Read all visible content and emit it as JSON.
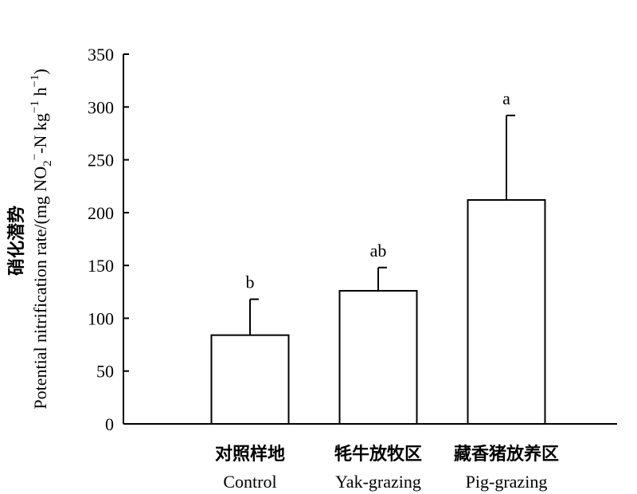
{
  "chart_data": {
    "type": "bar",
    "categories": [
      {
        "cn": "对照样地",
        "en": "Control"
      },
      {
        "cn": "牦牛放牧区",
        "en": "Yak-grazing"
      },
      {
        "cn": "藏香猪放养区",
        "en": "Pig-grazing"
      }
    ],
    "values": [
      84,
      126,
      212
    ],
    "error_upper": [
      118,
      148,
      292
    ],
    "significance": [
      "b",
      "ab",
      "a"
    ],
    "ylabel_cn": "硝化潜势",
    "ylabel_en": "Potential nitrification rate/(mg NO",
    "ylabel_en_sub": "2",
    "ylabel_en_sup1": "−",
    "ylabel_en_mid": "-N kg",
    "ylabel_en_sup2": "−1",
    "ylabel_en_mid2": " h",
    "ylabel_en_sup3": "−1",
    "ylabel_en_end": ")",
    "ylim": [
      0,
      350
    ],
    "yticks": [
      0,
      50,
      100,
      150,
      200,
      250,
      300,
      350
    ],
    "grid": false,
    "bar_fill": "#ffffff",
    "bar_stroke": "#000000"
  }
}
